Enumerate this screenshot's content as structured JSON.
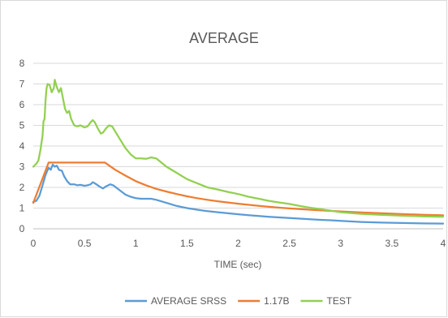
{
  "chart_data": {
    "type": "line",
    "title": "AVERAGE",
    "xlabel": "TIME (sec)",
    "ylabel": "",
    "xlim": [
      0,
      4
    ],
    "ylim": [
      0,
      8
    ],
    "x_ticks": [
      "0",
      "0.5",
      "1",
      "1.5",
      "2",
      "2.5",
      "3",
      "3.5",
      "4"
    ],
    "y_ticks": [
      "0",
      "1",
      "2",
      "3",
      "4",
      "5",
      "6",
      "7",
      "8"
    ],
    "grid": "horizontal",
    "legend_position": "bottom",
    "series": [
      {
        "name": "AVERAGE SRSS",
        "color": "#5b9bd5",
        "points": [
          [
            0,
            1.3
          ],
          [
            0.03,
            1.35
          ],
          [
            0.06,
            1.6
          ],
          [
            0.09,
            2.1
          ],
          [
            0.12,
            2.6
          ],
          [
            0.15,
            2.95
          ],
          [
            0.17,
            2.85
          ],
          [
            0.19,
            3.1
          ],
          [
            0.21,
            3.0
          ],
          [
            0.23,
            3.05
          ],
          [
            0.25,
            2.85
          ],
          [
            0.28,
            2.8
          ],
          [
            0.3,
            2.55
          ],
          [
            0.33,
            2.3
          ],
          [
            0.36,
            2.15
          ],
          [
            0.4,
            2.15
          ],
          [
            0.43,
            2.1
          ],
          [
            0.46,
            2.12
          ],
          [
            0.5,
            2.08
          ],
          [
            0.53,
            2.1
          ],
          [
            0.56,
            2.15
          ],
          [
            0.58,
            2.25
          ],
          [
            0.6,
            2.2
          ],
          [
            0.63,
            2.1
          ],
          [
            0.66,
            2.0
          ],
          [
            0.68,
            1.95
          ],
          [
            0.71,
            2.05
          ],
          [
            0.75,
            2.15
          ],
          [
            0.78,
            2.1
          ],
          [
            0.82,
            1.95
          ],
          [
            0.86,
            1.8
          ],
          [
            0.9,
            1.65
          ],
          [
            0.95,
            1.55
          ],
          [
            1.0,
            1.48
          ],
          [
            1.05,
            1.45
          ],
          [
            1.1,
            1.45
          ],
          [
            1.15,
            1.45
          ],
          [
            1.2,
            1.4
          ],
          [
            1.3,
            1.25
          ],
          [
            1.4,
            1.1
          ],
          [
            1.5,
            1.0
          ],
          [
            1.6,
            0.92
          ],
          [
            1.7,
            0.85
          ],
          [
            1.8,
            0.8
          ],
          [
            1.9,
            0.75
          ],
          [
            2.0,
            0.7
          ],
          [
            2.1,
            0.66
          ],
          [
            2.2,
            0.62
          ],
          [
            2.3,
            0.58
          ],
          [
            2.4,
            0.55
          ],
          [
            2.5,
            0.52
          ],
          [
            2.6,
            0.49
          ],
          [
            2.7,
            0.46
          ],
          [
            2.8,
            0.43
          ],
          [
            2.9,
            0.41
          ],
          [
            3.0,
            0.38
          ],
          [
            3.2,
            0.33
          ],
          [
            3.4,
            0.3
          ],
          [
            3.6,
            0.28
          ],
          [
            3.8,
            0.26
          ],
          [
            4.0,
            0.25
          ]
        ]
      },
      {
        "name": "1.17B",
        "color": "#ed7d31",
        "points": [
          [
            0,
            1.25
          ],
          [
            0.15,
            3.2
          ],
          [
            0.7,
            3.2
          ],
          [
            0.8,
            2.85
          ],
          [
            0.9,
            2.57
          ],
          [
            1.0,
            2.3
          ],
          [
            1.1,
            2.1
          ],
          [
            1.2,
            1.93
          ],
          [
            1.3,
            1.8
          ],
          [
            1.4,
            1.68
          ],
          [
            1.5,
            1.57
          ],
          [
            1.6,
            1.48
          ],
          [
            1.7,
            1.4
          ],
          [
            1.8,
            1.33
          ],
          [
            1.9,
            1.27
          ],
          [
            2.0,
            1.21
          ],
          [
            2.2,
            1.11
          ],
          [
            2.4,
            1.02
          ],
          [
            2.6,
            0.95
          ],
          [
            2.8,
            0.89
          ],
          [
            3.0,
            0.84
          ],
          [
            3.2,
            0.79
          ],
          [
            3.4,
            0.75
          ],
          [
            3.6,
            0.71
          ],
          [
            3.8,
            0.68
          ],
          [
            4.0,
            0.65
          ]
        ]
      },
      {
        "name": "TEST",
        "color": "#92d050",
        "points": [
          [
            0,
            3.0
          ],
          [
            0.03,
            3.15
          ],
          [
            0.05,
            3.3
          ],
          [
            0.07,
            3.8
          ],
          [
            0.09,
            4.5
          ],
          [
            0.1,
            5.2
          ],
          [
            0.11,
            5.3
          ],
          [
            0.12,
            6.2
          ],
          [
            0.13,
            6.8
          ],
          [
            0.14,
            7.0
          ],
          [
            0.16,
            6.95
          ],
          [
            0.18,
            6.6
          ],
          [
            0.2,
            6.8
          ],
          [
            0.21,
            7.2
          ],
          [
            0.23,
            6.85
          ],
          [
            0.25,
            6.6
          ],
          [
            0.27,
            6.8
          ],
          [
            0.29,
            6.3
          ],
          [
            0.31,
            5.8
          ],
          [
            0.33,
            5.6
          ],
          [
            0.35,
            5.7
          ],
          [
            0.37,
            5.3
          ],
          [
            0.4,
            5.0
          ],
          [
            0.43,
            4.95
          ],
          [
            0.46,
            5.0
          ],
          [
            0.5,
            4.9
          ],
          [
            0.53,
            4.95
          ],
          [
            0.56,
            5.15
          ],
          [
            0.58,
            5.25
          ],
          [
            0.6,
            5.15
          ],
          [
            0.63,
            4.85
          ],
          [
            0.66,
            4.6
          ],
          [
            0.68,
            4.65
          ],
          [
            0.71,
            4.85
          ],
          [
            0.74,
            5.0
          ],
          [
            0.77,
            4.95
          ],
          [
            0.8,
            4.7
          ],
          [
            0.85,
            4.3
          ],
          [
            0.9,
            3.9
          ],
          [
            0.95,
            3.6
          ],
          [
            1.0,
            3.4
          ],
          [
            1.05,
            3.4
          ],
          [
            1.1,
            3.38
          ],
          [
            1.15,
            3.45
          ],
          [
            1.2,
            3.4
          ],
          [
            1.25,
            3.2
          ],
          [
            1.3,
            3.0
          ],
          [
            1.4,
            2.7
          ],
          [
            1.5,
            2.4
          ],
          [
            1.6,
            2.2
          ],
          [
            1.7,
            2.0
          ],
          [
            1.8,
            1.9
          ],
          [
            1.9,
            1.78
          ],
          [
            2.0,
            1.68
          ],
          [
            2.1,
            1.55
          ],
          [
            2.2,
            1.45
          ],
          [
            2.3,
            1.35
          ],
          [
            2.4,
            1.27
          ],
          [
            2.5,
            1.2
          ],
          [
            2.6,
            1.1
          ],
          [
            2.7,
            1.02
          ],
          [
            2.8,
            0.95
          ],
          [
            2.9,
            0.88
          ],
          [
            3.0,
            0.8
          ],
          [
            3.2,
            0.72
          ],
          [
            3.4,
            0.67
          ],
          [
            3.6,
            0.63
          ],
          [
            3.8,
            0.6
          ],
          [
            4.0,
            0.58
          ]
        ]
      }
    ]
  }
}
